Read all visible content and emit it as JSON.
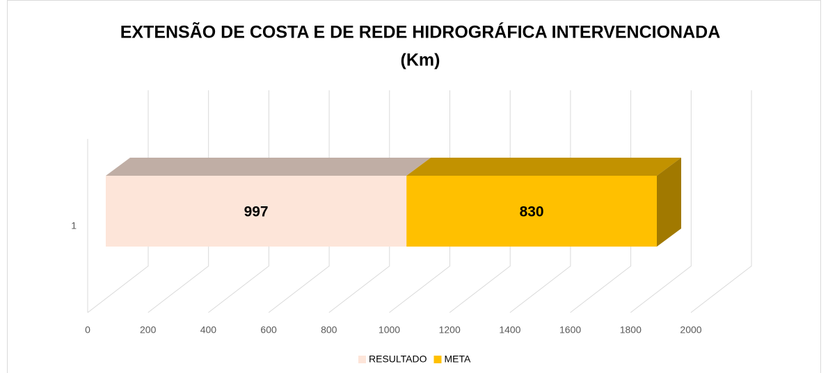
{
  "chart_data": {
    "type": "bar3d_stacked_horizontal",
    "title": [
      "EXTENSÃO DE COSTA E DE REDE HIDROGRÁFICA INTERVENCIONADA",
      "(Km)"
    ],
    "categories": [
      "1"
    ],
    "series": [
      {
        "name": "RESULTADO",
        "color": "#fde5d9",
        "values": [
          997
        ]
      },
      {
        "name": "META",
        "color": "#ffc000",
        "values": [
          830
        ]
      }
    ],
    "xlim": [
      0,
      2000
    ],
    "xticks": [
      0,
      200,
      400,
      600,
      800,
      1000,
      1200,
      1400,
      1600,
      1800,
      2000
    ],
    "grid": true,
    "legend": "bottom"
  }
}
